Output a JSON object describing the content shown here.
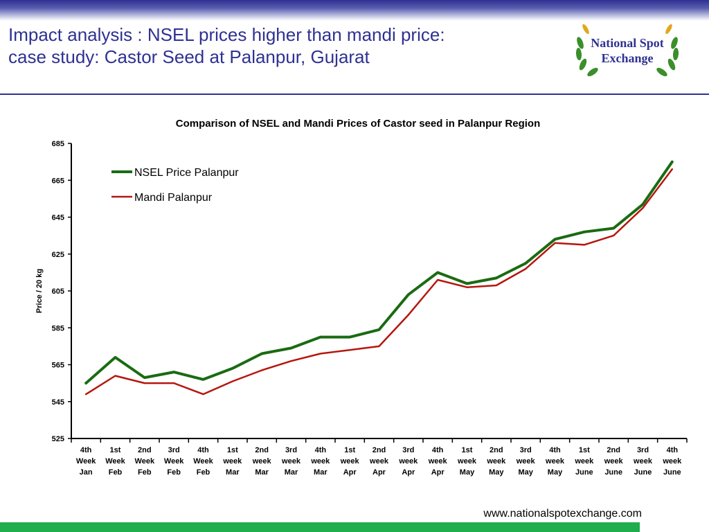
{
  "slide": {
    "title": "Impact analysis : NSEL prices higher than mandi price:\ncase study: Castor Seed at Palanpur, Gujarat",
    "logo_text_line1": "National Spot",
    "logo_text_line2": "Exchange",
    "footer_url": "www.nationalspotexchange.com"
  },
  "colors": {
    "title": "#2e3192",
    "nsel": "#1a6b12",
    "mandi": "#b5160d",
    "footer_bar": "#1fae4b"
  },
  "chart_data": {
    "type": "line",
    "title": "Comparison of NSEL and Mandi Prices of Castor seed in Palanpur Region",
    "xlabel": "",
    "ylabel": "Price / 20 kg",
    "ylim": [
      525,
      685
    ],
    "yticks": [
      525,
      545,
      565,
      585,
      605,
      625,
      645,
      665,
      685
    ],
    "grid": false,
    "legend_position": "top-left",
    "categories": [
      "4th Week Jan",
      "1st Week Feb",
      "2nd Week Feb",
      "3rd Week Feb",
      "4th Week Feb",
      "1st week Mar",
      "2nd week Mar",
      "3rd week Mar",
      "4th week Mar",
      "1st week Apr",
      "2nd week Apr",
      "3rd week Apr",
      "4th week Apr",
      "1st week May",
      "2nd week May",
      "3rd week May",
      "4th week May",
      "1st week June",
      "2nd week June",
      "3rd week June",
      "4th week June"
    ],
    "series": [
      {
        "name": "NSEL Price Palanpur",
        "values": [
          555,
          569,
          558,
          561,
          557,
          563,
          571,
          574,
          580,
          580,
          584,
          603,
          615,
          609,
          612,
          620,
          633,
          637,
          639,
          652,
          675
        ]
      },
      {
        "name": "Mandi Palanpur",
        "values": [
          549,
          559,
          555,
          555,
          549,
          556,
          562,
          567,
          571,
          573,
          575,
          592,
          611,
          607,
          608,
          617,
          631,
          630,
          635,
          650,
          671
        ]
      }
    ]
  }
}
